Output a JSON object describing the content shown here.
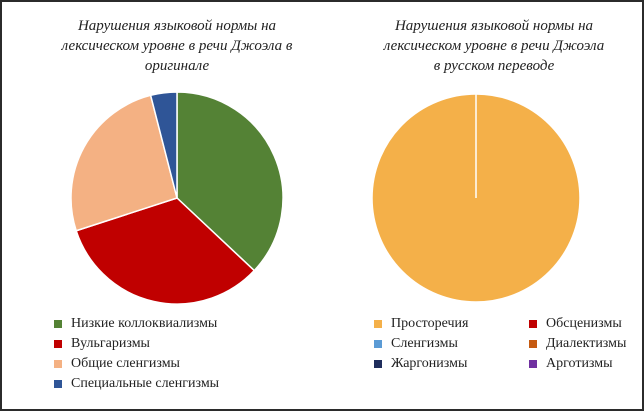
{
  "chart_data": [
    {
      "type": "pie",
      "title": "Нарушения языковой нормы на\nлексическом уровне в речи Джоэла в\nоригинале",
      "categories": [
        "Низкие коллоквиализмы",
        "Вульгаризмы",
        "Общие сленгизмы",
        "Специальные сленгизмы"
      ],
      "values": [
        37,
        33,
        26,
        4
      ],
      "colors": [
        "#548235",
        "#c00000",
        "#f4b183",
        "#2f5597"
      ],
      "legend_position": "bottom"
    },
    {
      "type": "pie",
      "title": "Нарушения языковой нормы на\nлексическом уровне в речи Джоэла\nв русском переводе",
      "categories": [
        "Просторечия",
        "Обсценизмы",
        "Сленгизмы",
        "Диалектизмы",
        "Жаргонизмы",
        "Арготизмы"
      ],
      "values": [
        100,
        0,
        0,
        0,
        0,
        0
      ],
      "colors": [
        "#f4b049",
        "#c00000",
        "#5b9bd5",
        "#c55a11",
        "#1f2d5c",
        "#7030a0"
      ],
      "legend_position": "bottom"
    }
  ]
}
